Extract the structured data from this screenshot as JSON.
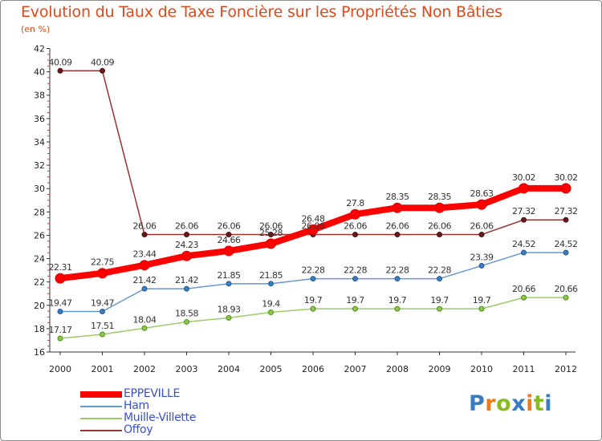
{
  "title": "Evolution du Taux de Taxe Foncière sur les Propriétés Non Bâties",
  "subtitle": "(en %)",
  "logo_text": "Proxiti",
  "chart_data": {
    "type": "line",
    "title": "Evolution du Taux de Taxe Foncière sur les Propriétés Non Bâties",
    "ylabel": "(en %)",
    "xlabel": "",
    "ylim": [
      16,
      42
    ],
    "yticks": [
      16,
      18,
      20,
      22,
      24,
      26,
      28,
      30,
      32,
      34,
      36,
      38,
      40,
      42
    ],
    "categories": [
      "2000",
      "2001",
      "2002",
      "2003",
      "2004",
      "2005",
      "2006",
      "2007",
      "2008",
      "2009",
      "2010",
      "2011",
      "2012"
    ],
    "grid": false,
    "legend_position": "bottom-left",
    "series": [
      {
        "name": "EPPEVILLE",
        "color": "#ff0000",
        "values": [
          22.31,
          22.75,
          23.44,
          24.23,
          24.66,
          25.28,
          26.48,
          27.8,
          28.35,
          28.35,
          28.63,
          30.02,
          30.02
        ],
        "labels": [
          "22.31",
          "22.75",
          "23.44",
          "24.23",
          "24.66",
          "25.28",
          "26.48",
          "27.8",
          "28.35",
          "28.35",
          "28.63",
          "30.02",
          "30.02"
        ]
      },
      {
        "name": "Ham",
        "color": "#6699cc",
        "values": [
          19.47,
          19.47,
          21.42,
          21.42,
          21.85,
          21.85,
          22.28,
          22.28,
          22.28,
          22.28,
          23.39,
          24.52,
          24.52
        ],
        "labels": [
          "19.47",
          "19.47",
          "21.42",
          "21.42",
          "21.85",
          "21.85",
          "22.28",
          "22.28",
          "22.28",
          "22.28",
          "23.39",
          "24.52",
          "24.52"
        ]
      },
      {
        "name": "Muille-Villette",
        "color": "#99cc66",
        "values": [
          17.17,
          17.51,
          18.04,
          18.58,
          18.93,
          19.4,
          19.7,
          19.7,
          19.7,
          19.7,
          19.7,
          20.66,
          20.66
        ],
        "labels": [
          "17.17",
          "17.51",
          "18.04",
          "18.58",
          "18.93",
          "19.4",
          "19.7",
          "19.7",
          "19.7",
          "19.7",
          "19.7",
          "20.66",
          "20.66"
        ]
      },
      {
        "name": "Offoy",
        "color": "#993333",
        "values": [
          40.09,
          40.09,
          26.06,
          26.06,
          26.06,
          26.06,
          26.06,
          26.06,
          26.06,
          26.06,
          26.06,
          27.32,
          27.32
        ],
        "labels": [
          "40.09",
          "40.09",
          "26.06",
          "26.06",
          "26.06",
          "26.06",
          "26.06",
          "26.06",
          "26.06",
          "26.06",
          "26.06",
          "27.32",
          "27.32"
        ]
      }
    ]
  }
}
